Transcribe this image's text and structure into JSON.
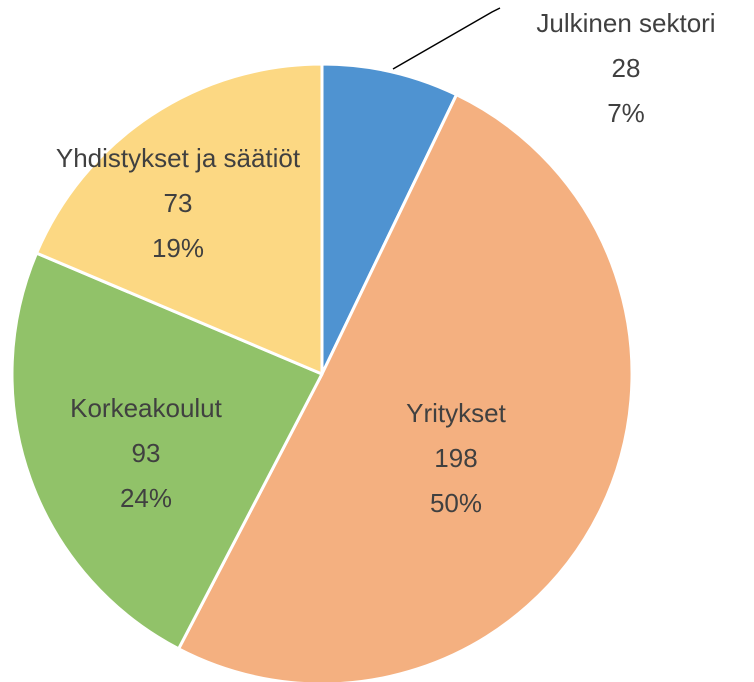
{
  "chart_data": {
    "type": "pie",
    "categories": [
      "Julkinen sektori",
      "Yritykset",
      "Korkeakoulut",
      "Yhdistykset ja säätiöt"
    ],
    "values": [
      28,
      198,
      93,
      73
    ],
    "percentage_labels": [
      "7%",
      "50%",
      "24%",
      "19%"
    ],
    "colors": [
      "#4f93d1",
      "#f4b080",
      "#91c269",
      "#fcd883"
    ]
  }
}
